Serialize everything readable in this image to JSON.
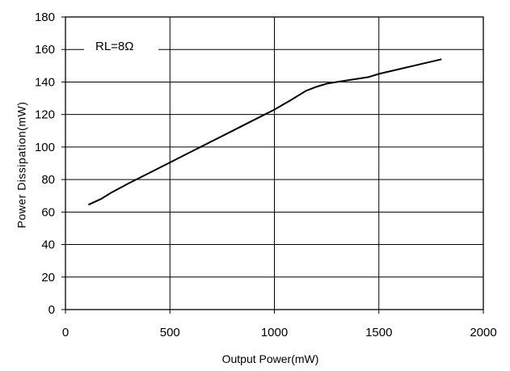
{
  "chart_data": {
    "type": "line",
    "title": "",
    "xlabel": "Output Power(mW)",
    "ylabel": "Power Dissipation(mW)",
    "xlim": [
      0,
      2000
    ],
    "ylim": [
      0,
      180
    ],
    "x_ticks": [
      0,
      500,
      1000,
      1500,
      2000
    ],
    "y_ticks": [
      0,
      20,
      40,
      60,
      80,
      100,
      120,
      140,
      160,
      180
    ],
    "x_tick_labels": [
      "0",
      "500",
      "1000",
      "1500",
      "2000"
    ],
    "y_tick_labels": [
      "0",
      "20",
      "40",
      "60",
      "80",
      "100",
      "120",
      "140",
      "160",
      "180"
    ],
    "grid": true,
    "annotation": "RL=8Ω",
    "series": [
      {
        "name": "",
        "x": [
          110,
          170,
          220,
          300,
          400,
          500,
          600,
          700,
          800,
          900,
          1000,
          1080,
          1150,
          1200,
          1250,
          1300,
          1350,
          1400,
          1450,
          1500,
          1600,
          1700,
          1800
        ],
        "y": [
          64.5,
          68,
          72,
          77.5,
          84,
          90.5,
          97,
          103.5,
          110,
          116.5,
          123,
          129,
          134.5,
          137,
          139,
          140,
          141,
          142,
          143,
          145,
          148,
          151,
          154
        ]
      }
    ]
  }
}
